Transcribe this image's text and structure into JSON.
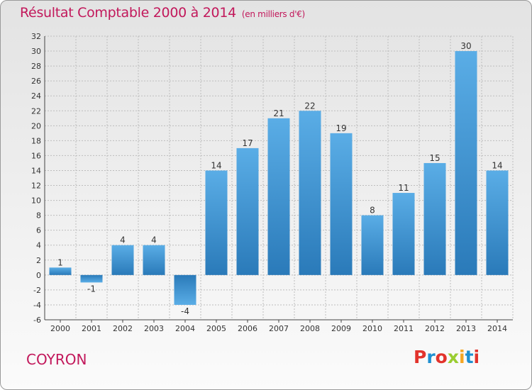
{
  "header": {
    "title": "Résultat Comptable 2000 à 2014",
    "unit": "(en milliers d'€)"
  },
  "footer": {
    "city": "COYRON",
    "logo_text": "Proxiti",
    "logo_colors": [
      "#e2332c",
      "#1f8fd0",
      "#e2332c",
      "#9acd32",
      "#f5a623",
      "#1f8fd0",
      "#e2332c"
    ]
  },
  "colors": {
    "title": "#c2185b",
    "bar_light": "#5aade6",
    "bar_dark": "#2a7ab9",
    "grid": "#bdbdbd"
  },
  "chart_data": {
    "type": "bar",
    "categories": [
      "2000",
      "2001",
      "2002",
      "2003",
      "2004",
      "2005",
      "2006",
      "2007",
      "2008",
      "2009",
      "2010",
      "2011",
      "2012",
      "2013",
      "2014"
    ],
    "values": [
      1,
      -1,
      4,
      4,
      -4,
      14,
      17,
      21,
      22,
      19,
      8,
      11,
      15,
      30,
      14
    ],
    "ylim": [
      -6,
      32
    ],
    "yticks": [
      -6,
      -4,
      -2,
      0,
      2,
      4,
      6,
      8,
      10,
      12,
      14,
      16,
      18,
      20,
      22,
      24,
      26,
      28,
      30,
      32
    ],
    "grid": true,
    "data_labels": true
  }
}
